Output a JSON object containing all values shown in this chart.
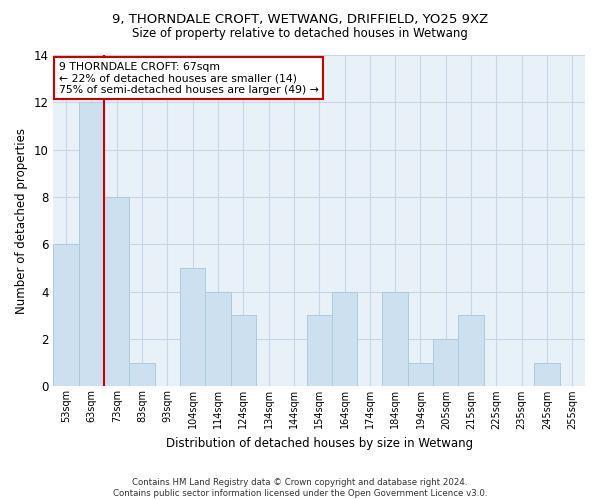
{
  "title1": "9, THORNDALE CROFT, WETWANG, DRIFFIELD, YO25 9XZ",
  "title2": "Size of property relative to detached houses in Wetwang",
  "xlabel": "Distribution of detached houses by size in Wetwang",
  "ylabel": "Number of detached properties",
  "bin_labels": [
    "53sqm",
    "63sqm",
    "73sqm",
    "83sqm",
    "93sqm",
    "104sqm",
    "114sqm",
    "124sqm",
    "134sqm",
    "144sqm",
    "154sqm",
    "164sqm",
    "174sqm",
    "184sqm",
    "194sqm",
    "205sqm",
    "215sqm",
    "225sqm",
    "235sqm",
    "245sqm",
    "255sqm"
  ],
  "bar_values": [
    6,
    12,
    8,
    1,
    0,
    5,
    4,
    3,
    0,
    0,
    3,
    4,
    0,
    4,
    1,
    2,
    3,
    0,
    0,
    1,
    0
  ],
  "bar_color": "#cce0f0",
  "bar_edge_color": "#aaccdd",
  "vline_x": 1.5,
  "vline_color": "#cc0000",
  "annotation_line1": "9 THORNDALE CROFT: 67sqm",
  "annotation_line2": "← 22% of detached houses are smaller (14)",
  "annotation_line3": "75% of semi-detached houses are larger (49) →",
  "annotation_box_color": "#ffffff",
  "annotation_box_edge": "#cc0000",
  "ylim": [
    0,
    14
  ],
  "yticks": [
    0,
    2,
    4,
    6,
    8,
    10,
    12,
    14
  ],
  "footnote": "Contains HM Land Registry data © Crown copyright and database right 2024.\nContains public sector information licensed under the Open Government Licence v3.0.",
  "bg_color": "#ffffff",
  "plot_bg_color": "#e8f0f8",
  "grid_color": "#c8d4e8"
}
